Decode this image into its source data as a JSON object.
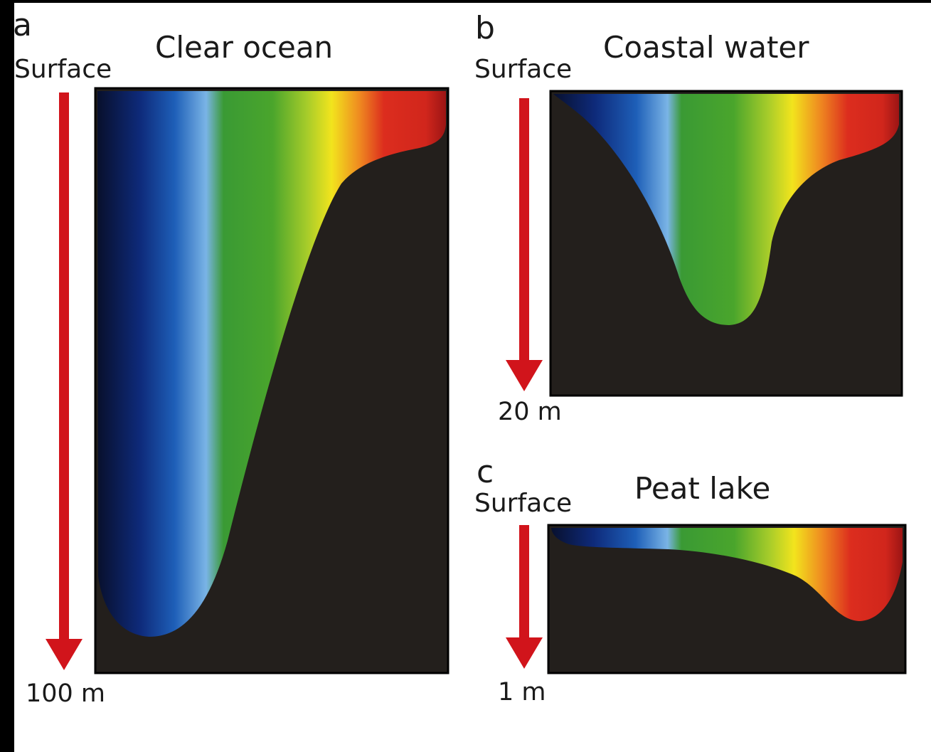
{
  "panels": [
    {
      "letter": "a",
      "title": "Clear ocean",
      "surface_label": "Surface",
      "depth_label": "100 m"
    },
    {
      "letter": "b",
      "title": "Coastal water",
      "surface_label": "Surface",
      "depth_label": "20 m"
    },
    {
      "letter": "c",
      "title": "Peat lake",
      "surface_label": "Surface",
      "depth_label": "1 m"
    }
  ],
  "colors": {
    "arrow": "#d1141b",
    "dark_water": "#231f1c",
    "spectrum": [
      "#0b1235",
      "#0d2f8a",
      "#1f6cc9",
      "#7fb6e6",
      "#3e9e35",
      "#7fbd2c",
      "#f0e51e",
      "#ef7d1f",
      "#d8271d",
      "#9c1414"
    ]
  }
}
